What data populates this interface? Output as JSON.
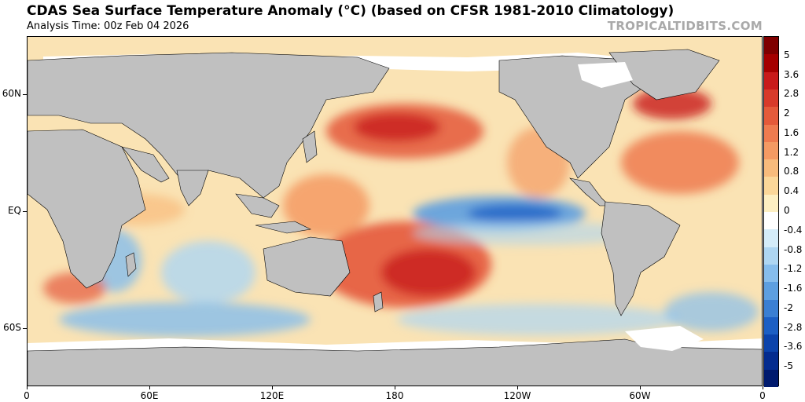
{
  "header": {
    "title": "CDAS Sea Surface Temperature Anomaly (°C) (based on CFSR 1981-2010 Climatology)",
    "subtitle": "Analysis Time: 00z Feb 04 2026",
    "brand": "TROPICALTIDBITS.COM"
  },
  "axes": {
    "y": [
      {
        "label": "60N",
        "lat": 60
      },
      {
        "label": "EQ",
        "lat": 0
      },
      {
        "label": "60S",
        "lat": -60
      }
    ],
    "x": [
      {
        "label": "0",
        "lon": 0
      },
      {
        "label": "60E",
        "lon": 60
      },
      {
        "label": "120E",
        "lon": 120
      },
      {
        "label": "180",
        "lon": 180
      },
      {
        "label": "120W",
        "lon": 240
      },
      {
        "label": "60W",
        "lon": 300
      },
      {
        "label": "0",
        "lon": 360
      }
    ]
  },
  "colorbar": {
    "labels": [
      "5",
      "3.6",
      "2.8",
      "2",
      "1.6",
      "1.2",
      "0.8",
      "0.4",
      "0",
      "-0.4",
      "-0.8",
      "-1.2",
      "-1.6",
      "-2",
      "-2.8",
      "-3.6",
      "-5"
    ],
    "colors": [
      "#7f0000",
      "#a50000",
      "#c81a1a",
      "#d83a2a",
      "#e45a3a",
      "#ee7b4f",
      "#f49a63",
      "#f8bb7c",
      "#fbd799",
      "#fdefc2",
      "#ffffff",
      "#d4ecf9",
      "#aed6f2",
      "#86bdec",
      "#5d9fe0",
      "#3a7fd3",
      "#1c5fc4",
      "#0b43ab",
      "#042c8f",
      "#001a6e"
    ]
  },
  "legend_colors": {
    "land": "#c0c0c0",
    "ice": "#ffffff",
    "warm_strong": "#c81a1a",
    "warm": "#ee7b4f",
    "cool": "#5d9fe0"
  }
}
